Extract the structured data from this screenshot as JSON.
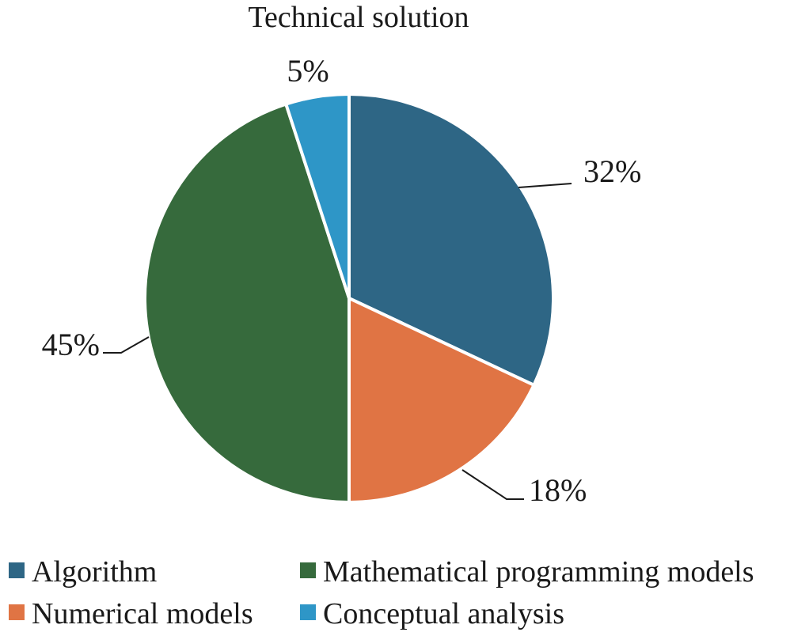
{
  "chart_data": {
    "type": "pie",
    "title": "Technical solution",
    "start_angle_deg": 0,
    "direction": "clockwise",
    "slices": [
      {
        "label": "Algorithm",
        "value": 32,
        "display": "32%",
        "color": "#2e6685"
      },
      {
        "label": "Numerical models",
        "value": 18,
        "display": "18%",
        "color": "#e07444"
      },
      {
        "label": "Mathematical programming models",
        "value": 45,
        "display": "45%",
        "color": "#366a3c"
      },
      {
        "label": "Conceptual analysis",
        "value": 5,
        "display": "5%",
        "color": "#2e96c7"
      }
    ],
    "legend": {
      "position": "bottom",
      "order": [
        "Algorithm",
        "Mathematical programming models",
        "Numerical models",
        "Conceptual analysis"
      ]
    }
  }
}
